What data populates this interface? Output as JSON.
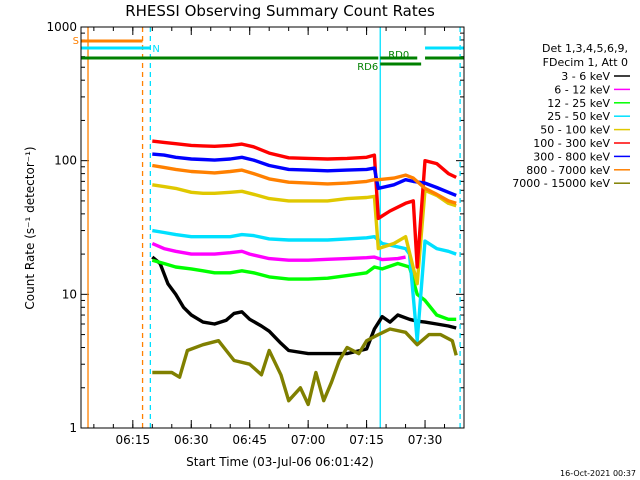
{
  "chart_data": {
    "type": "line",
    "title": "RHESSI Observing Summary Count Rates",
    "xlabel": "Start Time (03-Jul-06 06:01:42)",
    "ylabel": "Count Rate (s⁻¹ detector⁻¹)",
    "yscale": "log",
    "ylim": [
      1,
      1000
    ],
    "xlim": [
      "06:01:42",
      "07:40:00"
    ],
    "x_ticks": [
      "06:15",
      "06:30",
      "06:45",
      "07:00",
      "07:15",
      "07:30"
    ],
    "y_ticks": [
      "1",
      "10",
      "100",
      "1000"
    ],
    "legend_position": "right",
    "legend_header": [
      "Det 1,3,4,5,6,9,",
      "FDecim 1, Att 0"
    ],
    "footer_date": "16-Oct-2021 00:37",
    "flag_bars": [
      {
        "label": "S",
        "color": "#ff8000",
        "start": "06:01:42",
        "end": "06:17:30"
      },
      {
        "label": "N",
        "color": "#00e0ff",
        "start": "06:01:42",
        "end": "06:19:30"
      },
      {
        "label": "N",
        "color": "#00e0ff",
        "start": "07:30:00",
        "end": "07:40:00"
      },
      {
        "label": "",
        "color": "#008000",
        "start": "06:01:42",
        "end": "07:18:00"
      },
      {
        "label": "RD0",
        "color": "#008000",
        "start": "07:18:30",
        "end": "07:28:00"
      },
      {
        "label": "",
        "color": "#008000",
        "start": "07:30:00",
        "end": "07:40:00"
      },
      {
        "label": "RD6",
        "color": "#008000",
        "start": "07:18:30",
        "end": "07:29:00"
      }
    ],
    "vertical_markers": [
      {
        "time": "06:03:30",
        "color": "#ff8000",
        "style": "solid"
      },
      {
        "time": "06:17:30",
        "color": "#ff8000",
        "style": "dashed"
      },
      {
        "time": "06:19:30",
        "color": "#00e0ff",
        "style": "dashed"
      },
      {
        "time": "07:18:30",
        "color": "#00e0ff",
        "style": "solid"
      },
      {
        "time": "07:39:00",
        "color": "#00e0ff",
        "style": "dashed"
      }
    ],
    "series": [
      {
        "name": "3 - 6 keV",
        "color": "#000000",
        "points": [
          [
            "06:20",
            19
          ],
          [
            "06:22",
            17
          ],
          [
            "06:24",
            12
          ],
          [
            "06:26",
            10
          ],
          [
            "06:28",
            8
          ],
          [
            "06:30",
            7
          ],
          [
            "06:33",
            6.2
          ],
          [
            "06:36",
            6
          ],
          [
            "06:39",
            6.4
          ],
          [
            "06:41",
            7.2
          ],
          [
            "06:43",
            7.4
          ],
          [
            "06:45",
            6.5
          ],
          [
            "06:48",
            5.8
          ],
          [
            "06:50",
            5.3
          ],
          [
            "06:53",
            4.3
          ],
          [
            "06:55",
            3.8
          ],
          [
            "07:00",
            3.6
          ],
          [
            "07:05",
            3.6
          ],
          [
            "07:10",
            3.6
          ],
          [
            "07:15",
            3.9
          ],
          [
            "07:17",
            5.5
          ],
          [
            "07:19",
            6.8
          ],
          [
            "07:21",
            6.2
          ],
          [
            "07:23",
            7
          ],
          [
            "07:26",
            6.5
          ],
          [
            "07:28",
            6.3
          ],
          [
            "07:30",
            6.2
          ],
          [
            "07:33",
            6
          ],
          [
            "07:36",
            5.8
          ],
          [
            "07:38",
            5.6
          ]
        ]
      },
      {
        "name": "6 - 12 keV",
        "color": "#ff00ff",
        "points": [
          [
            "06:20",
            24
          ],
          [
            "06:23",
            22
          ],
          [
            "06:26",
            21
          ],
          [
            "06:30",
            20
          ],
          [
            "06:33",
            20
          ],
          [
            "06:36",
            20
          ],
          [
            "06:40",
            20.5
          ],
          [
            "06:43",
            21
          ],
          [
            "06:45",
            20
          ],
          [
            "06:50",
            18.5
          ],
          [
            "06:55",
            18
          ],
          [
            "07:00",
            18
          ],
          [
            "07:05",
            18.3
          ],
          [
            "07:10",
            18.5
          ],
          [
            "07:15",
            18.8
          ],
          [
            "07:17",
            19
          ],
          [
            "07:19",
            18.2
          ],
          [
            "07:23",
            18.5
          ],
          [
            "07:25",
            19
          ]
        ]
      },
      {
        "name": "12 - 25 keV",
        "color": "#00ff00",
        "points": [
          [
            "06:20",
            18
          ],
          [
            "06:23",
            17
          ],
          [
            "06:26",
            16
          ],
          [
            "06:30",
            15.5
          ],
          [
            "06:33",
            15
          ],
          [
            "06:36",
            14.5
          ],
          [
            "06:40",
            14.5
          ],
          [
            "06:43",
            15
          ],
          [
            "06:46",
            14.5
          ],
          [
            "06:50",
            13.5
          ],
          [
            "06:55",
            13
          ],
          [
            "07:00",
            13
          ],
          [
            "07:05",
            13.2
          ],
          [
            "07:10",
            13.8
          ],
          [
            "07:15",
            14.5
          ],
          [
            "07:17",
            16
          ],
          [
            "07:19",
            15.5
          ],
          [
            "07:23",
            17
          ],
          [
            "07:26",
            16
          ],
          [
            "07:28",
            10
          ],
          [
            "07:30",
            9
          ],
          [
            "07:33",
            7
          ],
          [
            "07:36",
            6.5
          ],
          [
            "07:38",
            6.5
          ]
        ]
      },
      {
        "name": "25 - 50 keV",
        "color": "#00e0ff",
        "points": [
          [
            "06:20",
            30
          ],
          [
            "06:23",
            29
          ],
          [
            "06:26",
            28
          ],
          [
            "06:30",
            27
          ],
          [
            "06:33",
            27
          ],
          [
            "06:36",
            27
          ],
          [
            "06:40",
            27
          ],
          [
            "06:43",
            28
          ],
          [
            "06:46",
            27.5
          ],
          [
            "06:50",
            26
          ],
          [
            "06:55",
            25.5
          ],
          [
            "07:00",
            25.5
          ],
          [
            "07:05",
            25.5
          ],
          [
            "07:10",
            26
          ],
          [
            "07:15",
            26.5
          ],
          [
            "07:17",
            27
          ],
          [
            "07:19",
            24
          ],
          [
            "07:22",
            23
          ],
          [
            "07:25",
            22
          ],
          [
            "07:26",
            20
          ],
          [
            "07:28",
            4.5
          ],
          [
            "07:30",
            25
          ],
          [
            "07:33",
            22
          ],
          [
            "07:36",
            21
          ],
          [
            "07:38",
            20
          ]
        ]
      },
      {
        "name": "50 - 100 keV",
        "color": "#e0c800",
        "points": [
          [
            "06:20",
            66
          ],
          [
            "06:23",
            64
          ],
          [
            "06:26",
            62
          ],
          [
            "06:30",
            58
          ],
          [
            "06:33",
            57
          ],
          [
            "06:36",
            57
          ],
          [
            "06:40",
            58
          ],
          [
            "06:43",
            59
          ],
          [
            "06:46",
            56
          ],
          [
            "06:50",
            52
          ],
          [
            "06:55",
            50
          ],
          [
            "07:00",
            50
          ],
          [
            "07:05",
            50
          ],
          [
            "07:10",
            52
          ],
          [
            "07:15",
            53
          ],
          [
            "07:17",
            54
          ],
          [
            "07:18",
            22
          ],
          [
            "07:22",
            24
          ],
          [
            "07:25",
            27
          ],
          [
            "07:28",
            12
          ],
          [
            "07:30",
            60
          ],
          [
            "07:33",
            55
          ],
          [
            "07:36",
            48
          ],
          [
            "07:38",
            46
          ]
        ]
      },
      {
        "name": "100 - 300 keV",
        "color": "#ff0000",
        "points": [
          [
            "06:20",
            140
          ],
          [
            "06:23",
            137
          ],
          [
            "06:26",
            134
          ],
          [
            "06:30",
            130
          ],
          [
            "06:33",
            129
          ],
          [
            "06:36",
            128
          ],
          [
            "06:40",
            130
          ],
          [
            "06:43",
            133
          ],
          [
            "06:46",
            127
          ],
          [
            "06:50",
            114
          ],
          [
            "06:55",
            105
          ],
          [
            "07:00",
            104
          ],
          [
            "07:05",
            103
          ],
          [
            "07:10",
            104
          ],
          [
            "07:15",
            106
          ],
          [
            "07:17",
            110
          ],
          [
            "07:18",
            37
          ],
          [
            "07:21",
            42
          ],
          [
            "07:25",
            48
          ],
          [
            "07:27",
            50
          ],
          [
            "07:28",
            16
          ],
          [
            "07:30",
            100
          ],
          [
            "07:33",
            95
          ],
          [
            "07:36",
            80
          ],
          [
            "07:38",
            75
          ]
        ]
      },
      {
        "name": "300 - 800 keV",
        "color": "#0000ff",
        "points": [
          [
            "06:20",
            112
          ],
          [
            "06:23",
            110
          ],
          [
            "06:26",
            106
          ],
          [
            "06:30",
            103
          ],
          [
            "06:33",
            102
          ],
          [
            "06:36",
            101
          ],
          [
            "06:40",
            103
          ],
          [
            "06:43",
            106
          ],
          [
            "06:46",
            101
          ],
          [
            "06:50",
            92
          ],
          [
            "06:55",
            86
          ],
          [
            "07:00",
            85
          ],
          [
            "07:05",
            84
          ],
          [
            "07:10",
            85
          ],
          [
            "07:15",
            86
          ],
          [
            "07:17",
            88
          ],
          [
            "07:18",
            62
          ],
          [
            "07:22",
            66
          ],
          [
            "07:25",
            72
          ],
          [
            "07:27",
            70
          ],
          [
            "07:30",
            68
          ],
          [
            "07:33",
            63
          ],
          [
            "07:36",
            58
          ],
          [
            "07:38",
            55
          ]
        ]
      },
      {
        "name": "800 - 7000 keV",
        "color": "#ff8000",
        "points": [
          [
            "06:20",
            92
          ],
          [
            "06:23",
            89
          ],
          [
            "06:26",
            86
          ],
          [
            "06:30",
            83
          ],
          [
            "06:33",
            82
          ],
          [
            "06:36",
            81
          ],
          [
            "06:40",
            83
          ],
          [
            "06:43",
            85
          ],
          [
            "06:46",
            80
          ],
          [
            "06:50",
            73
          ],
          [
            "06:55",
            69
          ],
          [
            "07:00",
            68
          ],
          [
            "07:05",
            67
          ],
          [
            "07:10",
            68
          ],
          [
            "07:15",
            70
          ],
          [
            "07:17",
            72
          ],
          [
            "07:18",
            72
          ],
          [
            "07:22",
            74
          ],
          [
            "07:25",
            78
          ],
          [
            "07:27",
            74
          ],
          [
            "07:30",
            62
          ],
          [
            "07:33",
            56
          ],
          [
            "07:36",
            50
          ],
          [
            "07:38",
            48
          ]
        ]
      },
      {
        "name": "7000 - 15000 keV",
        "color": "#808000",
        "points": [
          [
            "06:20",
            2.6
          ],
          [
            "06:25",
            2.6
          ],
          [
            "06:27",
            2.4
          ],
          [
            "06:29",
            3.8
          ],
          [
            "06:33",
            4.2
          ],
          [
            "06:37",
            4.5
          ],
          [
            "06:41",
            3.2
          ],
          [
            "06:45",
            3
          ],
          [
            "06:48",
            2.5
          ],
          [
            "06:50",
            3.8
          ],
          [
            "06:53",
            2.5
          ],
          [
            "06:55",
            1.6
          ],
          [
            "06:58",
            2
          ],
          [
            "07:00",
            1.5
          ],
          [
            "07:02",
            2.6
          ],
          [
            "07:04",
            1.6
          ],
          [
            "07:06",
            2.2
          ],
          [
            "07:08",
            3.2
          ],
          [
            "07:10",
            4
          ],
          [
            "07:13",
            3.6
          ],
          [
            "07:15",
            4.5
          ],
          [
            "07:18",
            5
          ],
          [
            "07:21",
            5.5
          ],
          [
            "07:25",
            5.2
          ],
          [
            "07:28",
            4.2
          ],
          [
            "07:31",
            5
          ],
          [
            "07:34",
            5
          ],
          [
            "07:37",
            4.5
          ],
          [
            "07:38",
            3.5
          ]
        ]
      }
    ]
  }
}
